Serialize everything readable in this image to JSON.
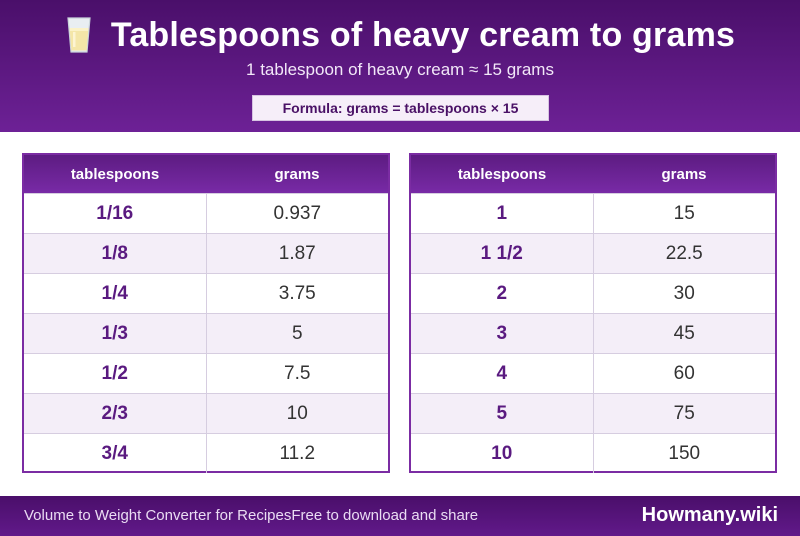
{
  "header": {
    "title": "Tablespoons of heavy cream to grams",
    "subtitle": "1 tablespoon of heavy cream ≈ 15 grams",
    "formula": "Formula: grams = tablespoons × 15",
    "icon": "glass-of-milk-icon"
  },
  "tables": [
    {
      "headers": [
        "tablespoons",
        "grams"
      ],
      "rows": [
        [
          "1/16",
          "0.937"
        ],
        [
          "1/8",
          "1.87"
        ],
        [
          "1/4",
          "3.75"
        ],
        [
          "1/3",
          "5"
        ],
        [
          "1/2",
          "7.5"
        ],
        [
          "2/3",
          "10"
        ],
        [
          "3/4",
          "11.2"
        ]
      ]
    },
    {
      "headers": [
        "tablespoons",
        "grams"
      ],
      "rows": [
        [
          "1",
          "15"
        ],
        [
          "1 1/2",
          "22.5"
        ],
        [
          "2",
          "30"
        ],
        [
          "3",
          "45"
        ],
        [
          "4",
          "60"
        ],
        [
          "5",
          "75"
        ],
        [
          "10",
          "150"
        ]
      ]
    }
  ],
  "footer": {
    "left_text": "Volume to Weight Converter for Recipes",
    "middle_text": "Free to download and share",
    "brand": "Howmany.wiki"
  },
  "colors": {
    "primary": "#5d1c82",
    "accent_text": "#5a1a80",
    "alt_row": "#f4eef8"
  }
}
